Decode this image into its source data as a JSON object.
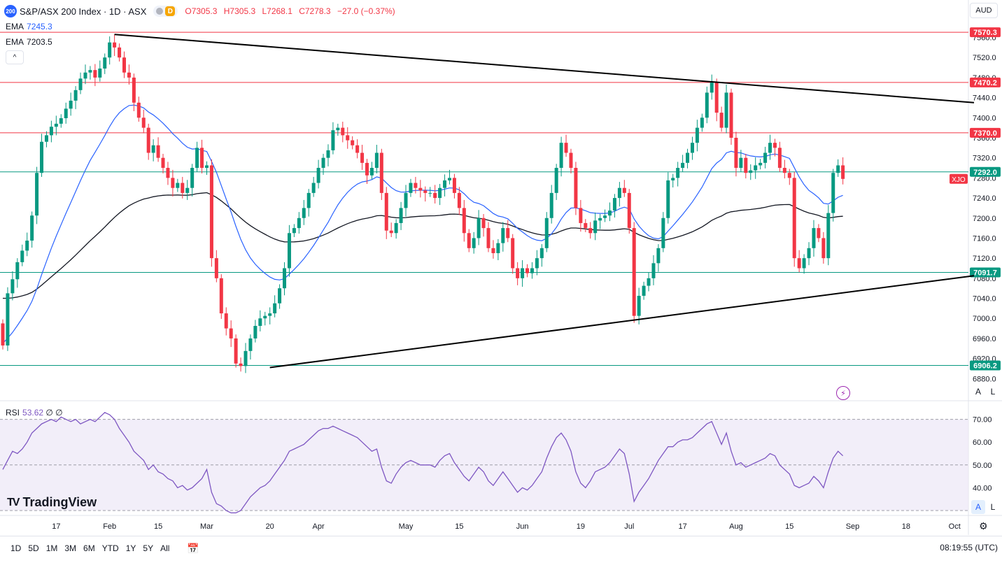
{
  "header": {
    "badge": "200",
    "symbol": "S&P/ASX 200 Index · 1D · ASX",
    "market_status_letter": "D",
    "open": "O7305.3",
    "high": "H7305.3",
    "low": "L7268.1",
    "close": "C7278.3",
    "change": "−27.0 (−0.37%)"
  },
  "ema": [
    {
      "label": "EMA",
      "value": "7245.3"
    },
    {
      "label": "EMA",
      "value": "7203.5"
    }
  ],
  "currency": "AUD",
  "collapse_label": "^",
  "rsi": {
    "label": "RSI",
    "value": "53.62",
    "extra": "∅ ∅"
  },
  "scale_buttons": {
    "auto": "A",
    "log": "L"
  },
  "logo": {
    "mark": "TV",
    "text": "TradingView"
  },
  "ranges": [
    "1D",
    "5D",
    "1M",
    "3M",
    "6M",
    "YTD",
    "1Y",
    "5Y",
    "All"
  ],
  "clock": "08:19:55 (UTC)",
  "colors": {
    "up": "#089981",
    "down": "#f23645",
    "ema50": "#2962ff",
    "ema200": "#131722",
    "res": "#f23645",
    "sup": "#089981",
    "rsi": "#7e57c2"
  },
  "chart_data": {
    "type": "candlestick",
    "title": "S&P/ASX 200 Index · 1D · ASX",
    "ylim": [
      6840,
      7590
    ],
    "y_ticks": [
      6880,
      6920,
      6960,
      7000,
      7040,
      7080,
      7120,
      7160,
      7200,
      7240,
      7280,
      7320,
      7360,
      7400,
      7440,
      7480,
      7520,
      7560
    ],
    "x_ticks": [
      {
        "label": "17",
        "i": 11
      },
      {
        "label": "Feb",
        "i": 22
      },
      {
        "label": "15",
        "i": 32
      },
      {
        "label": "Mar",
        "i": 42
      },
      {
        "label": "20",
        "i": 55
      },
      {
        "label": "Apr",
        "i": 65
      },
      {
        "label": "May",
        "i": 83
      },
      {
        "label": "15",
        "i": 94
      },
      {
        "label": "Jun",
        "i": 107
      },
      {
        "label": "19",
        "i": 119
      },
      {
        "label": "Jul",
        "i": 129
      },
      {
        "label": "17",
        "i": 140
      },
      {
        "label": "Aug",
        "i": 151
      },
      {
        "label": "15",
        "i": 162
      },
      {
        "label": "Sep",
        "i": 175
      },
      {
        "label": "18",
        "i": 186
      },
      {
        "label": "Oct",
        "i": 196
      }
    ],
    "levels": [
      {
        "value": 7570.3,
        "label": "7570.3",
        "kind": "resistance"
      },
      {
        "value": 7470.2,
        "label": "7470.2",
        "kind": "resistance"
      },
      {
        "value": 7370.0,
        "label": "7370.0",
        "kind": "resistance"
      },
      {
        "value": 7292.0,
        "label": "7292.0",
        "kind": "support"
      },
      {
        "value": 7091.7,
        "label": "7091.7",
        "kind": "support"
      },
      {
        "value": 6906.2,
        "label": "6906.2",
        "kind": "support"
      }
    ],
    "price_tag": "XJO",
    "trendlines": [
      {
        "name": "upper",
        "from": {
          "i": 23,
          "v": 7566
        },
        "to": {
          "i": 200,
          "v": 7430
        }
      },
      {
        "name": "lower",
        "from": {
          "i": 55,
          "v": 6902
        },
        "to": {
          "i": 200,
          "v": 7085
        }
      }
    ],
    "closes": [
      6946,
      7050,
      7078,
      7112,
      7135,
      7155,
      7205,
      7290,
      7352,
      7365,
      7382,
      7388,
      7399,
      7418,
      7434,
      7455,
      7478,
      7490,
      7495,
      7480,
      7498,
      7520,
      7550,
      7540,
      7520,
      7490,
      7480,
      7430,
      7400,
      7380,
      7330,
      7345,
      7320,
      7300,
      7280,
      7260,
      7270,
      7250,
      7260,
      7300,
      7340,
      7300,
      7305,
      7120,
      7080,
      7010,
      6980,
      6960,
      6910,
      6905,
      6935,
      6960,
      6985,
      7000,
      7005,
      7010,
      7030,
      7060,
      7100,
      7170,
      7180,
      7200,
      7220,
      7250,
      7270,
      7300,
      7320,
      7335,
      7375,
      7380,
      7365,
      7355,
      7345,
      7330,
      7310,
      7285,
      7300,
      7330,
      7250,
      7175,
      7170,
      7190,
      7220,
      7250,
      7270,
      7260,
      7255,
      7250,
      7250,
      7240,
      7260,
      7275,
      7280,
      7250,
      7220,
      7170,
      7140,
      7160,
      7200,
      7180,
      7140,
      7130,
      7150,
      7180,
      7160,
      7100,
      7080,
      7100,
      7090,
      7100,
      7120,
      7140,
      7200,
      7250,
      7300,
      7350,
      7330,
      7300,
      7220,
      7190,
      7180,
      7170,
      7195,
      7200,
      7205,
      7215,
      7240,
      7260,
      7250,
      7180,
      7005,
      7045,
      7065,
      7080,
      7110,
      7140,
      7200,
      7275,
      7280,
      7300,
      7310,
      7330,
      7350,
      7380,
      7400,
      7450,
      7470,
      7410,
      7380,
      7450,
      7360,
      7300,
      7320,
      7290,
      7295,
      7305,
      7310,
      7330,
      7350,
      7340,
      7300,
      7290,
      7280,
      7120,
      7100,
      7120,
      7140,
      7180,
      7160,
      7120,
      7210,
      7290,
      7305,
      7278
    ],
    "ema_fast_value": 7245.3,
    "ema_slow_value": 7203.5,
    "rsi": {
      "ylim": [
        30,
        76
      ],
      "y_ticks": [
        40,
        50,
        60,
        70
      ],
      "band": [
        30,
        70
      ],
      "values": [
        48,
        52,
        56,
        55,
        57,
        60,
        64,
        66,
        68,
        69,
        70,
        69,
        71,
        70,
        69,
        70,
        68,
        69,
        70,
        69,
        71,
        73,
        72,
        70,
        66,
        63,
        60,
        56,
        54,
        52,
        48,
        50,
        47,
        46,
        44,
        43,
        40,
        41,
        39,
        40,
        42,
        44,
        48,
        38,
        33,
        32,
        30,
        29,
        29,
        30,
        33,
        36,
        38,
        40,
        41,
        43,
        46,
        49,
        52,
        56,
        57,
        58,
        59,
        61,
        63,
        65,
        66,
        66,
        67,
        66,
        65,
        64,
        63,
        62,
        60,
        58,
        56,
        57,
        49,
        43,
        42,
        46,
        49,
        51,
        52,
        51,
        50,
        50,
        50,
        49,
        52,
        54,
        55,
        51,
        48,
        45,
        43,
        46,
        49,
        47,
        43,
        41,
        44,
        47,
        44,
        41,
        38,
        40,
        39,
        41,
        44,
        47,
        53,
        58,
        62,
        64,
        61,
        56,
        47,
        42,
        40,
        43,
        47,
        48,
        49,
        51,
        54,
        57,
        55,
        46,
        34,
        38,
        41,
        44,
        48,
        52,
        55,
        58,
        58,
        60,
        61,
        61,
        62,
        64,
        66,
        68,
        69,
        64,
        59,
        64,
        56,
        50,
        51,
        49,
        50,
        51,
        52,
        53,
        55,
        54,
        50,
        48,
        46,
        41,
        40,
        41,
        42,
        45,
        43,
        40,
        47,
        53,
        56,
        54
      ]
    }
  }
}
